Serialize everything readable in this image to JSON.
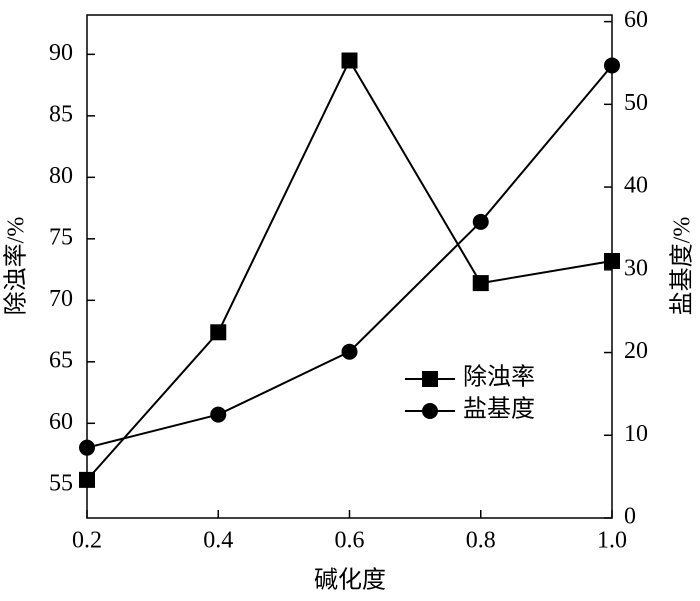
{
  "chart_data": {
    "type": "line",
    "x_label": "碱化度",
    "y_label": "除浊率/%",
    "y2_label": "盐基度/%",
    "x": [
      0.2,
      0.4,
      0.6,
      0.8,
      1.0
    ],
    "series": [
      {
        "name": "除浊率",
        "color": "#000000",
        "marker": "square",
        "values": [
          55.4,
          67.4,
          89.5,
          71.4,
          73.2
        ]
      },
      {
        "name": "盐基度",
        "color": "#000000",
        "marker": "circle",
        "axis": "y2",
        "values": [
          8.5,
          12.5,
          20.1,
          35.8,
          54.7
        ]
      }
    ],
    "xlim": [
      0.2,
      1.0
    ],
    "xticks": [
      0.2,
      0.4,
      0.6,
      0.8,
      {
        "value": 1.0,
        "label": "1.0"
      }
    ],
    "ylim": [
      52.3,
      93.2
    ],
    "yticks": [
      55,
      60,
      65,
      70,
      75,
      80,
      85,
      90
    ],
    "y2lim": [
      0,
      60.8
    ],
    "y2ticks": [
      0,
      10,
      20,
      30,
      40,
      50,
      60
    ],
    "legend": "center-right"
  }
}
